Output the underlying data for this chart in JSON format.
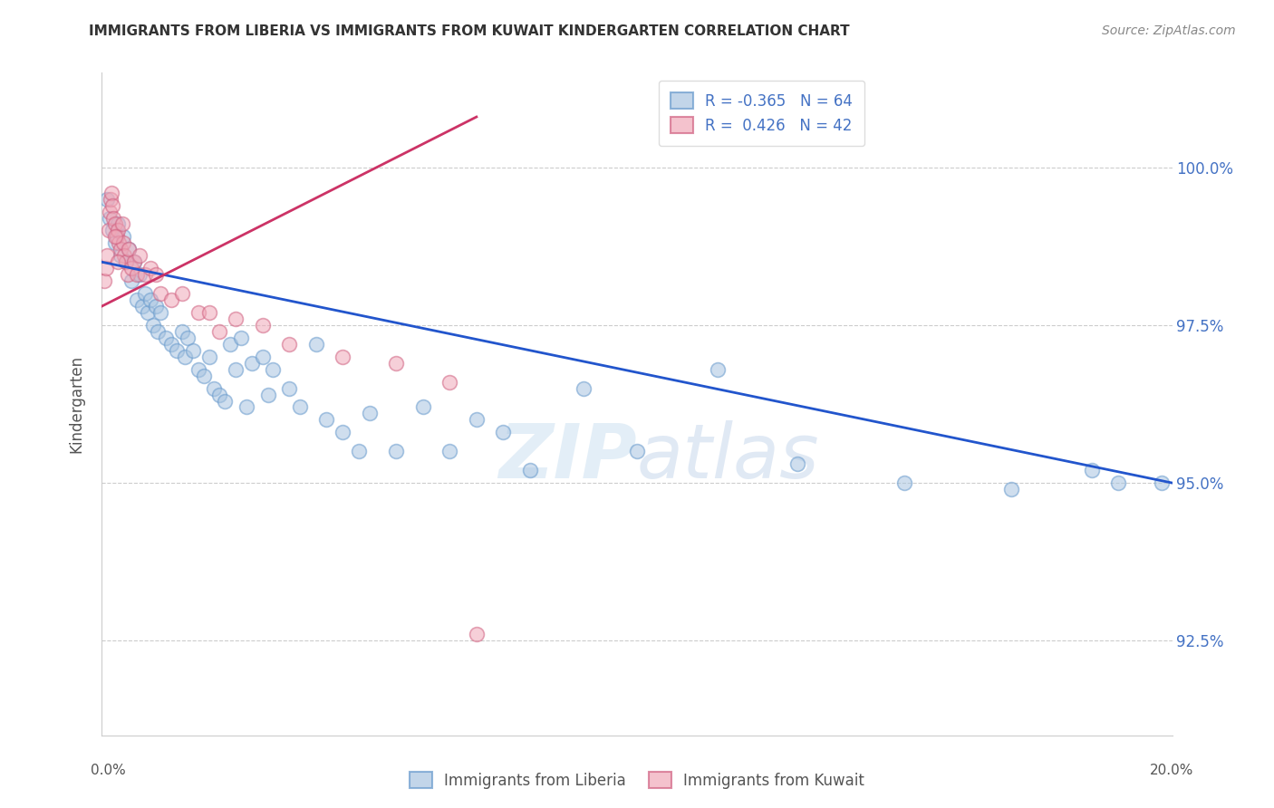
{
  "title": "IMMIGRANTS FROM LIBERIA VS IMMIGRANTS FROM KUWAIT KINDERGARTEN CORRELATION CHART",
  "source": "Source: ZipAtlas.com",
  "ylabel": "Kindergarten",
  "xlim": [
    0.0,
    20.0
  ],
  "ylim": [
    91.0,
    101.5
  ],
  "yticks": [
    92.5,
    95.0,
    97.5,
    100.0
  ],
  "ytick_labels": [
    "92.5%",
    "95.0%",
    "97.5%",
    "100.0%"
  ],
  "liberia_color": "#a8c4e0",
  "kuwait_color": "#f0a8b8",
  "liberia_line_color": "#2255cc",
  "kuwait_line_color": "#cc3366",
  "liberia_R": -0.365,
  "liberia_N": 64,
  "kuwait_R": 0.426,
  "kuwait_N": 42,
  "watermark_zip": "ZIP",
  "watermark_atlas": "atlas",
  "liberia_x": [
    0.1,
    0.15,
    0.2,
    0.25,
    0.3,
    0.35,
    0.4,
    0.45,
    0.5,
    0.55,
    0.6,
    0.65,
    0.7,
    0.75,
    0.8,
    0.85,
    0.9,
    0.95,
    1.0,
    1.05,
    1.1,
    1.2,
    1.3,
    1.4,
    1.5,
    1.55,
    1.6,
    1.7,
    1.8,
    1.9,
    2.0,
    2.1,
    2.2,
    2.3,
    2.4,
    2.5,
    2.6,
    2.7,
    2.8,
    3.0,
    3.1,
    3.2,
    3.5,
    3.7,
    4.0,
    4.2,
    4.5,
    4.8,
    5.0,
    5.5,
    6.0,
    6.5,
    7.0,
    7.5,
    8.0,
    9.0,
    10.0,
    11.5,
    13.0,
    15.0,
    17.0,
    18.5,
    19.0,
    19.8
  ],
  "liberia_y": [
    99.5,
    99.2,
    99.0,
    98.8,
    99.1,
    98.6,
    98.9,
    98.5,
    98.7,
    98.2,
    98.5,
    97.9,
    98.3,
    97.8,
    98.0,
    97.7,
    97.9,
    97.5,
    97.8,
    97.4,
    97.7,
    97.3,
    97.2,
    97.1,
    97.4,
    97.0,
    97.3,
    97.1,
    96.8,
    96.7,
    97.0,
    96.5,
    96.4,
    96.3,
    97.2,
    96.8,
    97.3,
    96.2,
    96.9,
    97.0,
    96.4,
    96.8,
    96.5,
    96.2,
    97.2,
    96.0,
    95.8,
    95.5,
    96.1,
    95.5,
    96.2,
    95.5,
    96.0,
    95.8,
    95.2,
    96.5,
    95.5,
    96.8,
    95.3,
    95.0,
    94.9,
    95.2,
    95.0,
    95.0
  ],
  "kuwait_x": [
    0.05,
    0.08,
    0.1,
    0.12,
    0.14,
    0.16,
    0.18,
    0.2,
    0.22,
    0.25,
    0.28,
    0.3,
    0.32,
    0.35,
    0.38,
    0.4,
    0.42,
    0.45,
    0.48,
    0.5,
    0.55,
    0.6,
    0.65,
    0.7,
    0.8,
    0.9,
    1.0,
    1.1,
    1.3,
    1.5,
    1.8,
    2.0,
    2.5,
    3.0,
    3.5,
    4.5,
    5.5,
    6.5,
    7.0,
    2.2,
    0.25,
    0.3
  ],
  "kuwait_y": [
    98.2,
    98.4,
    98.6,
    99.0,
    99.3,
    99.5,
    99.6,
    99.4,
    99.2,
    99.1,
    98.9,
    99.0,
    98.8,
    98.7,
    99.1,
    98.8,
    98.6,
    98.5,
    98.3,
    98.7,
    98.4,
    98.5,
    98.3,
    98.6,
    98.3,
    98.4,
    98.3,
    98.0,
    97.9,
    98.0,
    97.7,
    97.7,
    97.6,
    97.5,
    97.2,
    97.0,
    96.9,
    96.6,
    92.6,
    97.4,
    98.9,
    98.5
  ]
}
